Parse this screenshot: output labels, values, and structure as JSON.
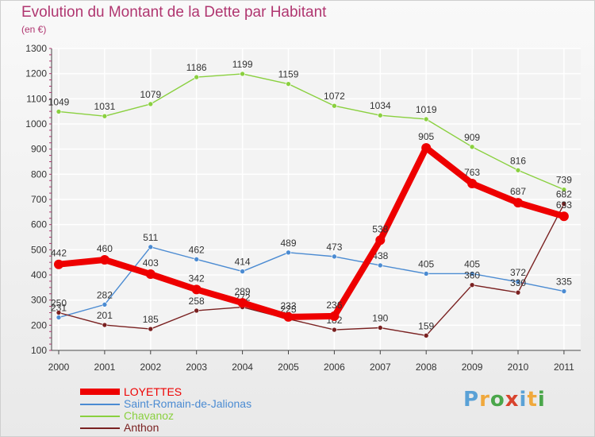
{
  "title": "Evolution du Montant de la Dette par Habitant",
  "subtitle": "(en €)",
  "logo": {
    "text": "Proxiti",
    "letter_colors": [
      "#5aa1d6",
      "#f0a83c",
      "#4aa64a",
      "#d8432d",
      "#5aa1d6",
      "#f0a83c",
      "#4aa64a"
    ]
  },
  "colors": {
    "background": "#f3f3f3",
    "grid": "#ffffff",
    "axis_text": "#333333",
    "title": "#b03670"
  },
  "chart_data": {
    "type": "line",
    "title": "Evolution du Montant de la Dette par Habitant",
    "subtitle": "(en €)",
    "xlabel": "",
    "ylabel": "",
    "x": [
      "2000",
      "2001",
      "2002",
      "2003",
      "2004",
      "2005",
      "2006",
      "2007",
      "2008",
      "2009",
      "2010",
      "2011"
    ],
    "yticks": [
      100,
      200,
      300,
      400,
      500,
      600,
      700,
      800,
      900,
      1000,
      1100,
      1200,
      1300
    ],
    "ylim": [
      100,
      1300
    ],
    "grid": true,
    "legend_position": "bottom-left",
    "series": [
      {
        "name": "LOYETTES",
        "color": "#ee0000",
        "width": 8,
        "values": [
          442,
          460,
          403,
          342,
          289,
          233,
          236,
          538,
          905,
          763,
          687,
          633
        ]
      },
      {
        "name": "Saint-Romain-de-Jalionas",
        "color": "#4b8bd2",
        "width": 1.4,
        "values": [
          231,
          282,
          511,
          462,
          414,
          489,
          473,
          438,
          405,
          405,
          372,
          335
        ]
      },
      {
        "name": "Chavanoz",
        "color": "#8ad03f",
        "width": 1.4,
        "values": [
          1049,
          1031,
          1079,
          1186,
          1199,
          1159,
          1072,
          1034,
          1019,
          909,
          816,
          739
        ]
      },
      {
        "name": "Anthon",
        "color": "#7a2121",
        "width": 1.4,
        "values": [
          250,
          201,
          185,
          258,
          272,
          225,
          182,
          190,
          159,
          360,
          330,
          682
        ]
      }
    ]
  }
}
